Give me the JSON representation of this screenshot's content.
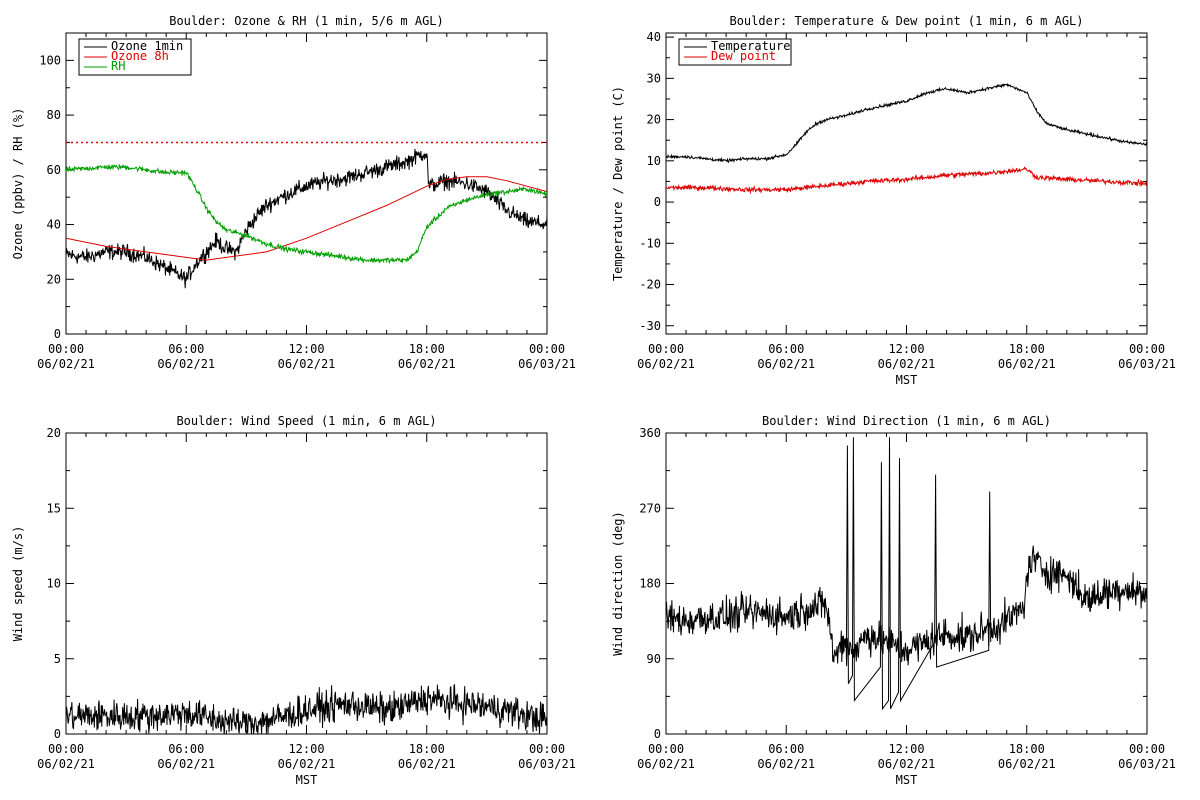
{
  "chart_data": [
    {
      "type": "line",
      "title": "Boulder: Ozone & RH (1 min, 5/6 m AGL)",
      "ylabel": "Ozone (ppbv) / RH (%)",
      "xlabel": "",
      "ylim": [
        0,
        110
      ],
      "yticks": [
        0,
        20,
        40,
        60,
        80,
        100
      ],
      "xlim": [
        0,
        24
      ],
      "xticks": [
        {
          "time": "00:00",
          "date": "06/02/21"
        },
        {
          "time": "06:00",
          "date": "06/02/21"
        },
        {
          "time": "12:00",
          "date": "06/02/21"
        },
        {
          "time": "18:00",
          "date": "06/02/21"
        },
        {
          "time": "00:00",
          "date": "06/03/21"
        }
      ],
      "legend": "top-left",
      "reference_line": {
        "y": 70,
        "color": "#dd0000",
        "style": "dotted"
      },
      "series": [
        {
          "name": "Ozone 1min",
          "color": "#000000",
          "noise": 2.5,
          "x": [
            0,
            1,
            2,
            3,
            4,
            5,
            5.5,
            6,
            6.5,
            7,
            7.5,
            8,
            8.5,
            9,
            9.5,
            10,
            11,
            12,
            13,
            14,
            15,
            16,
            17,
            17.8,
            18,
            18.1,
            19,
            20,
            21,
            22,
            23,
            24
          ],
          "y": [
            29,
            28,
            30,
            30,
            28,
            24,
            22,
            20,
            26,
            30,
            34,
            31,
            30,
            38,
            43,
            47,
            51,
            54,
            56,
            57,
            59,
            61,
            63,
            66,
            66,
            54,
            56,
            55,
            52,
            45,
            41,
            40
          ]
        },
        {
          "name": "Ozone 8h",
          "color": "#dd0000",
          "noise": 0,
          "x": [
            0,
            2,
            4,
            6,
            7,
            8,
            10,
            12,
            14,
            16,
            18,
            19,
            20,
            21,
            22,
            23,
            24
          ],
          "y": [
            35,
            32,
            30,
            28,
            27,
            28,
            30,
            35,
            41,
            47,
            54,
            56.5,
            57.5,
            57.5,
            56,
            54,
            52
          ]
        },
        {
          "name": "RH",
          "color": "#00a000",
          "noise": 0.8,
          "x": [
            0,
            1,
            2,
            3,
            4,
            5,
            6,
            6.5,
            7,
            7.5,
            8,
            9,
            10,
            11,
            12,
            13,
            14,
            15,
            16,
            17,
            17.5,
            18,
            19,
            20,
            21,
            22,
            23,
            24
          ],
          "y": [
            60,
            60.5,
            61,
            61,
            60,
            59,
            59,
            53,
            46,
            41,
            38,
            36,
            33,
            31,
            30,
            29,
            28,
            27,
            27,
            27,
            30,
            39,
            46,
            49,
            51,
            52,
            53,
            51
          ]
        }
      ]
    },
    {
      "type": "line",
      "title": "Boulder: Temperature & Dew point (1 min, 6 m AGL)",
      "ylabel": "Temperature / Dew point (C)",
      "xlabel": "MST",
      "ylim": [
        -32,
        41
      ],
      "yticks": [
        -30,
        -20,
        -10,
        0,
        10,
        20,
        30,
        40
      ],
      "xlim": [
        0,
        24
      ],
      "xticks": [
        {
          "time": "00:00",
          "date": "06/02/21"
        },
        {
          "time": "06:00",
          "date": "06/02/21"
        },
        {
          "time": "12:00",
          "date": "06/02/21"
        },
        {
          "time": "18:00",
          "date": "06/02/21"
        },
        {
          "time": "00:00",
          "date": "06/03/21"
        }
      ],
      "legend": "top-left",
      "series": [
        {
          "name": "Temperature",
          "color": "#000000",
          "noise": 0.3,
          "x": [
            0,
            1,
            2,
            3,
            4,
            5,
            6,
            6.5,
            7,
            7.5,
            8,
            9,
            10,
            11,
            12,
            13,
            14,
            15,
            16,
            17,
            17.5,
            18,
            18.5,
            19,
            20,
            21,
            22,
            23,
            24
          ],
          "y": [
            11,
            11,
            10.5,
            10,
            10.5,
            10.5,
            11.5,
            14,
            17,
            19,
            20,
            21,
            22.5,
            23.5,
            24.5,
            26.5,
            27.5,
            26.5,
            27.5,
            28.5,
            27.5,
            26.5,
            22,
            19,
            17.5,
            16.5,
            15.5,
            14.5,
            14
          ]
        },
        {
          "name": "Dew point",
          "color": "#dd0000",
          "noise": 0.5,
          "x": [
            0,
            2,
            4,
            5,
            6,
            8,
            10,
            12,
            14,
            16,
            17,
            18,
            18.5,
            20,
            22,
            24
          ],
          "y": [
            3.5,
            3.5,
            3,
            3,
            3,
            4,
            5,
            5.5,
            6.5,
            7,
            7.5,
            8,
            6,
            5.5,
            5,
            4.5
          ]
        }
      ]
    },
    {
      "type": "line",
      "title": "Boulder: Wind Speed (1 min, 6 m AGL)",
      "ylabel": "Wind speed (m/s)",
      "xlabel": "MST",
      "ylim": [
        0,
        20
      ],
      "yticks": [
        0,
        5,
        10,
        15,
        20
      ],
      "xlim": [
        0,
        24
      ],
      "xticks": [
        {
          "time": "00:00",
          "date": "06/02/21"
        },
        {
          "time": "06:00",
          "date": "06/02/21"
        },
        {
          "time": "12:00",
          "date": "06/02/21"
        },
        {
          "time": "18:00",
          "date": "06/02/21"
        },
        {
          "time": "00:00",
          "date": "06/03/21"
        }
      ],
      "series": [
        {
          "name": "",
          "color": "#000000",
          "noise": 0.9,
          "floor": 0,
          "x": [
            0,
            2,
            4,
            6,
            7,
            8,
            9,
            10,
            11,
            12,
            13,
            14,
            15,
            16,
            17,
            18,
            19,
            20,
            21,
            22,
            23,
            24
          ],
          "y": [
            1.2,
            1.2,
            1.2,
            1.4,
            1.1,
            0.8,
            0.7,
            0.9,
            1.2,
            1.6,
            1.8,
            2.0,
            1.8,
            1.6,
            1.9,
            2.4,
            2.1,
            2.0,
            1.8,
            1.6,
            1.2,
            1.0
          ]
        }
      ]
    },
    {
      "type": "line",
      "title": "Boulder: Wind Direction (1 min, 6 m AGL)",
      "ylabel": "Wind direction (deg)",
      "xlabel": "MST",
      "ylim": [
        0,
        360
      ],
      "yticks": [
        0,
        90,
        180,
        270,
        360
      ],
      "xlim": [
        0,
        24
      ],
      "xticks": [
        {
          "time": "00:00",
          "date": "06/02/21"
        },
        {
          "time": "06:00",
          "date": "06/02/21"
        },
        {
          "time": "12:00",
          "date": "06/02/21"
        },
        {
          "time": "18:00",
          "date": "06/02/21"
        },
        {
          "time": "00:00",
          "date": "06/03/21"
        }
      ],
      "series": [
        {
          "name": "",
          "color": "#000000",
          "noise": 18,
          "floor": 0,
          "x": [
            0,
            1,
            2,
            3,
            4,
            5,
            6,
            7,
            8,
            8.4,
            8.8,
            9.5,
            10,
            11,
            12,
            13,
            14,
            15,
            16,
            17,
            17.8,
            18.2,
            19,
            20,
            21,
            22,
            23,
            24
          ],
          "y": [
            140,
            135,
            140,
            140,
            145,
            145,
            140,
            150,
            155,
            90,
            110,
            100,
            120,
            110,
            100,
            110,
            120,
            115,
            125,
            135,
            150,
            210,
            195,
            190,
            160,
            170,
            175,
            165
          ]
        },
        {
          "name": "",
          "color": "#000000",
          "noise": 0,
          "floor": 0,
          "x": [
            9.0,
            9.05,
            9.1,
            9.3,
            9.35,
            9.4,
            10.7,
            10.75,
            10.8,
            11.1,
            11.15,
            11.2,
            11.6,
            11.65,
            11.7,
            13.4,
            13.45,
            13.5,
            16.1,
            16.15,
            16.2
          ],
          "y": [
            90,
            345,
            60,
            70,
            355,
            40,
            80,
            325,
            30,
            40,
            355,
            30,
            50,
            330,
            40,
            110,
            310,
            80,
            100,
            290,
            110
          ]
        }
      ]
    }
  ]
}
